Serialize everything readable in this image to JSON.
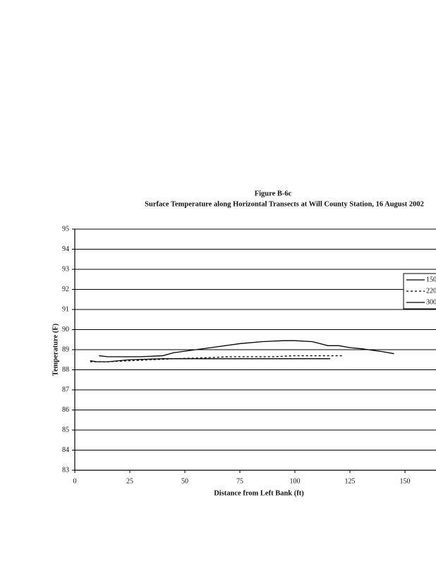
{
  "chart_data": {
    "type": "line",
    "title": "Figure B-6c",
    "subtitle": "Surface Temperature along Horizontal Transects at Will County Station, 16 August 2002",
    "x_label": "Distance from Left Bank (ft)",
    "y_label": "Temperature (F)",
    "xlim": [
      0,
      175
    ],
    "xticks": [
      0,
      25,
      50,
      75,
      100,
      125,
      150
    ],
    "ylim": [
      83,
      95
    ],
    "yticks": [
      83,
      84,
      85,
      86,
      87,
      88,
      89,
      90,
      91,
      92,
      93,
      94,
      95
    ],
    "grid": true,
    "legend": "right",
    "series": [
      {
        "name": "150",
        "color": "#000000",
        "line_style": "solid",
        "x": [
          11,
          15,
          20,
          30,
          40,
          45,
          55,
          65,
          75,
          85,
          95,
          100,
          108,
          115,
          120,
          125,
          130,
          140,
          145
        ],
        "values": [
          88.7,
          88.65,
          88.65,
          88.65,
          88.7,
          88.85,
          89.0,
          89.15,
          89.3,
          89.4,
          89.45,
          89.45,
          89.4,
          89.2,
          89.2,
          89.1,
          89.05,
          88.9,
          88.8
        ]
      },
      {
        "name": "220",
        "color": "#000000",
        "line_style": "dashed",
        "x": [
          7,
          15,
          25,
          35,
          45,
          60,
          70,
          80,
          90,
          100,
          110,
          122
        ],
        "values": [
          88.4,
          88.4,
          88.45,
          88.5,
          88.55,
          88.6,
          88.65,
          88.65,
          88.65,
          88.7,
          88.7,
          88.7
        ]
      },
      {
        "name": "300",
        "color": "#000000",
        "line_style": "solid",
        "x": [
          7,
          10,
          15,
          25,
          40,
          60,
          80,
          100,
          116
        ],
        "values": [
          88.45,
          88.4,
          88.4,
          88.5,
          88.55,
          88.55,
          88.55,
          88.55,
          88.55
        ]
      }
    ]
  }
}
